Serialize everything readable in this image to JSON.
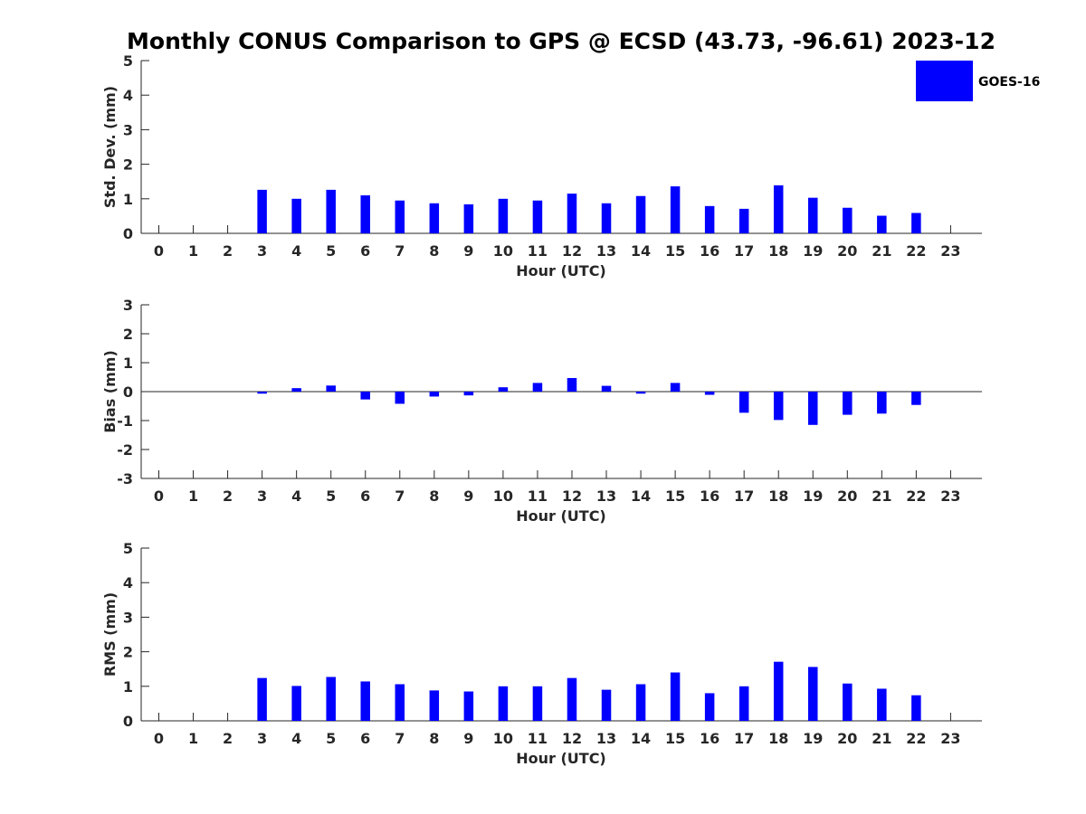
{
  "title": "Monthly CONUS Comparison to GPS @ ECSD (43.73, -96.61) 2023-12",
  "colors": {
    "bar": "#0000ff",
    "axis": "#262626",
    "background": "#ffffff"
  },
  "legend": {
    "label": "GOES-16",
    "placement": "top-right"
  },
  "chart_data": [
    {
      "type": "bar",
      "xlabel": "Hour (UTC)",
      "ylabel": "Std. Dev. (mm)",
      "ylim": [
        0,
        5
      ],
      "yticks": [
        0,
        1,
        2,
        3,
        4,
        5
      ],
      "categories": [
        "0",
        "1",
        "2",
        "3",
        "4",
        "5",
        "6",
        "7",
        "8",
        "9",
        "10",
        "11",
        "12",
        "13",
        "14",
        "15",
        "16",
        "17",
        "18",
        "19",
        "20",
        "21",
        "22",
        "23"
      ],
      "series": [
        {
          "name": "GOES-16",
          "values": [
            null,
            null,
            null,
            1.26,
            1.0,
            1.26,
            1.1,
            0.95,
            0.87,
            0.84,
            1.0,
            0.95,
            1.15,
            0.87,
            1.08,
            1.36,
            0.79,
            0.71,
            1.39,
            1.03,
            0.74,
            0.51,
            0.59,
            null
          ]
        }
      ]
    },
    {
      "type": "bar",
      "xlabel": "Hour (UTC)",
      "ylabel": "Bias (mm)",
      "ylim": [
        -3,
        3
      ],
      "yticks": [
        -3,
        -2,
        -1,
        0,
        1,
        2,
        3
      ],
      "categories": [
        "0",
        "1",
        "2",
        "3",
        "4",
        "5",
        "6",
        "7",
        "8",
        "9",
        "10",
        "11",
        "12",
        "13",
        "14",
        "15",
        "16",
        "17",
        "18",
        "19",
        "20",
        "21",
        "22",
        "23"
      ],
      "series": [
        {
          "name": "GOES-16",
          "values": [
            null,
            null,
            null,
            -0.07,
            0.12,
            0.21,
            -0.27,
            -0.42,
            -0.17,
            -0.13,
            0.15,
            0.3,
            0.47,
            0.2,
            -0.07,
            0.3,
            -0.11,
            -0.73,
            -0.98,
            -1.15,
            -0.8,
            -0.76,
            -0.46,
            null
          ]
        }
      ]
    },
    {
      "type": "bar",
      "xlabel": "Hour (UTC)",
      "ylabel": "RMS (mm)",
      "ylim": [
        0,
        5
      ],
      "yticks": [
        0,
        1,
        2,
        3,
        4,
        5
      ],
      "categories": [
        "0",
        "1",
        "2",
        "3",
        "4",
        "5",
        "6",
        "7",
        "8",
        "9",
        "10",
        "11",
        "12",
        "13",
        "14",
        "15",
        "16",
        "17",
        "18",
        "19",
        "20",
        "21",
        "22",
        "23"
      ],
      "series": [
        {
          "name": "GOES-16",
          "values": [
            null,
            null,
            null,
            1.24,
            1.01,
            1.27,
            1.14,
            1.06,
            0.88,
            0.85,
            1.0,
            1.0,
            1.24,
            0.9,
            1.06,
            1.4,
            0.8,
            1.0,
            1.71,
            1.56,
            1.08,
            0.93,
            0.74,
            null
          ]
        }
      ]
    }
  ]
}
